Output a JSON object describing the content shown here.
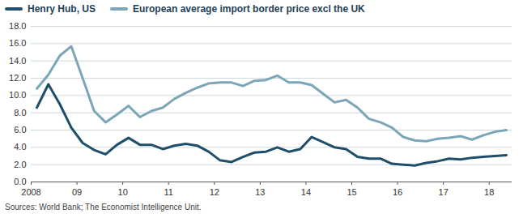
{
  "chart_data": {
    "type": "line",
    "x": [
      2008.125,
      2008.375,
      2008.625,
      2008.875,
      2009.125,
      2009.375,
      2009.625,
      2009.875,
      2010.125,
      2010.375,
      2010.625,
      2010.875,
      2011.125,
      2011.375,
      2011.625,
      2011.875,
      2012.125,
      2012.375,
      2012.625,
      2012.875,
      2013.125,
      2013.375,
      2013.625,
      2013.875,
      2014.125,
      2014.375,
      2014.625,
      2014.875,
      2015.125,
      2015.375,
      2015.625,
      2015.875,
      2016.125,
      2016.375,
      2016.625,
      2016.875,
      2017.125,
      2017.375,
      2017.625,
      2017.875,
      2018.125,
      2018.375
    ],
    "series": [
      {
        "name": "Henry Hub, US",
        "color": "#1f4e6b",
        "values": [
          8.6,
          11.3,
          9.0,
          6.3,
          4.5,
          3.7,
          3.2,
          4.3,
          5.1,
          4.3,
          4.3,
          3.8,
          4.2,
          4.4,
          4.2,
          3.5,
          2.5,
          2.3,
          2.9,
          3.4,
          3.5,
          4.0,
          3.5,
          3.8,
          5.2,
          4.6,
          4.0,
          3.8,
          2.9,
          2.7,
          2.7,
          2.1,
          2.0,
          1.9,
          2.2,
          2.4,
          2.7,
          2.6,
          2.8,
          2.9,
          3.0,
          3.1
        ]
      },
      {
        "name": "European average import border price excl the UK",
        "color": "#7aa6b8",
        "values": [
          10.8,
          12.4,
          14.6,
          15.7,
          12.0,
          8.2,
          6.9,
          7.8,
          8.8,
          7.5,
          8.2,
          8.6,
          9.6,
          10.3,
          10.9,
          11.4,
          11.5,
          11.5,
          11.1,
          11.7,
          11.8,
          12.3,
          11.5,
          11.5,
          11.2,
          10.2,
          9.2,
          9.5,
          8.6,
          7.3,
          6.9,
          6.3,
          5.2,
          4.8,
          4.7,
          5.0,
          5.1,
          5.3,
          4.9,
          5.4,
          5.8,
          6.0
        ]
      }
    ],
    "xlim": [
      2008,
      2018.5
    ],
    "xticks": [
      2008,
      {
        "value": 2009,
        "label": "09"
      },
      {
        "value": 2010,
        "label": "10"
      },
      {
        "value": 2011,
        "label": "11"
      },
      {
        "value": 2012,
        "label": "12"
      },
      {
        "value": 2013,
        "label": "13"
      },
      {
        "value": 2014,
        "label": "14"
      },
      {
        "value": 2015,
        "label": "15"
      },
      {
        "value": 2016,
        "label": "16"
      },
      {
        "value": 2017,
        "label": "17"
      },
      {
        "value": 2018,
        "label": "18"
      }
    ],
    "ylim": [
      0,
      18
    ],
    "yticks": [
      {
        "value": 0,
        "label": "0.0"
      },
      {
        "value": 2,
        "label": "2.0"
      },
      {
        "value": 4,
        "label": "4.0"
      },
      {
        "value": 6,
        "label": "6.0"
      },
      {
        "value": 8,
        "label": "8.0"
      },
      {
        "value": 10,
        "label": "10.0"
      },
      {
        "value": 12,
        "label": "12.0"
      },
      {
        "value": 14,
        "label": "14.0"
      },
      {
        "value": 16,
        "label": "16.0"
      },
      {
        "value": 18,
        "label": "18.0"
      }
    ],
    "grid": true,
    "legend": "top-left",
    "caption": "Sources: World Bank; The Economist Intelligence Unit."
  }
}
